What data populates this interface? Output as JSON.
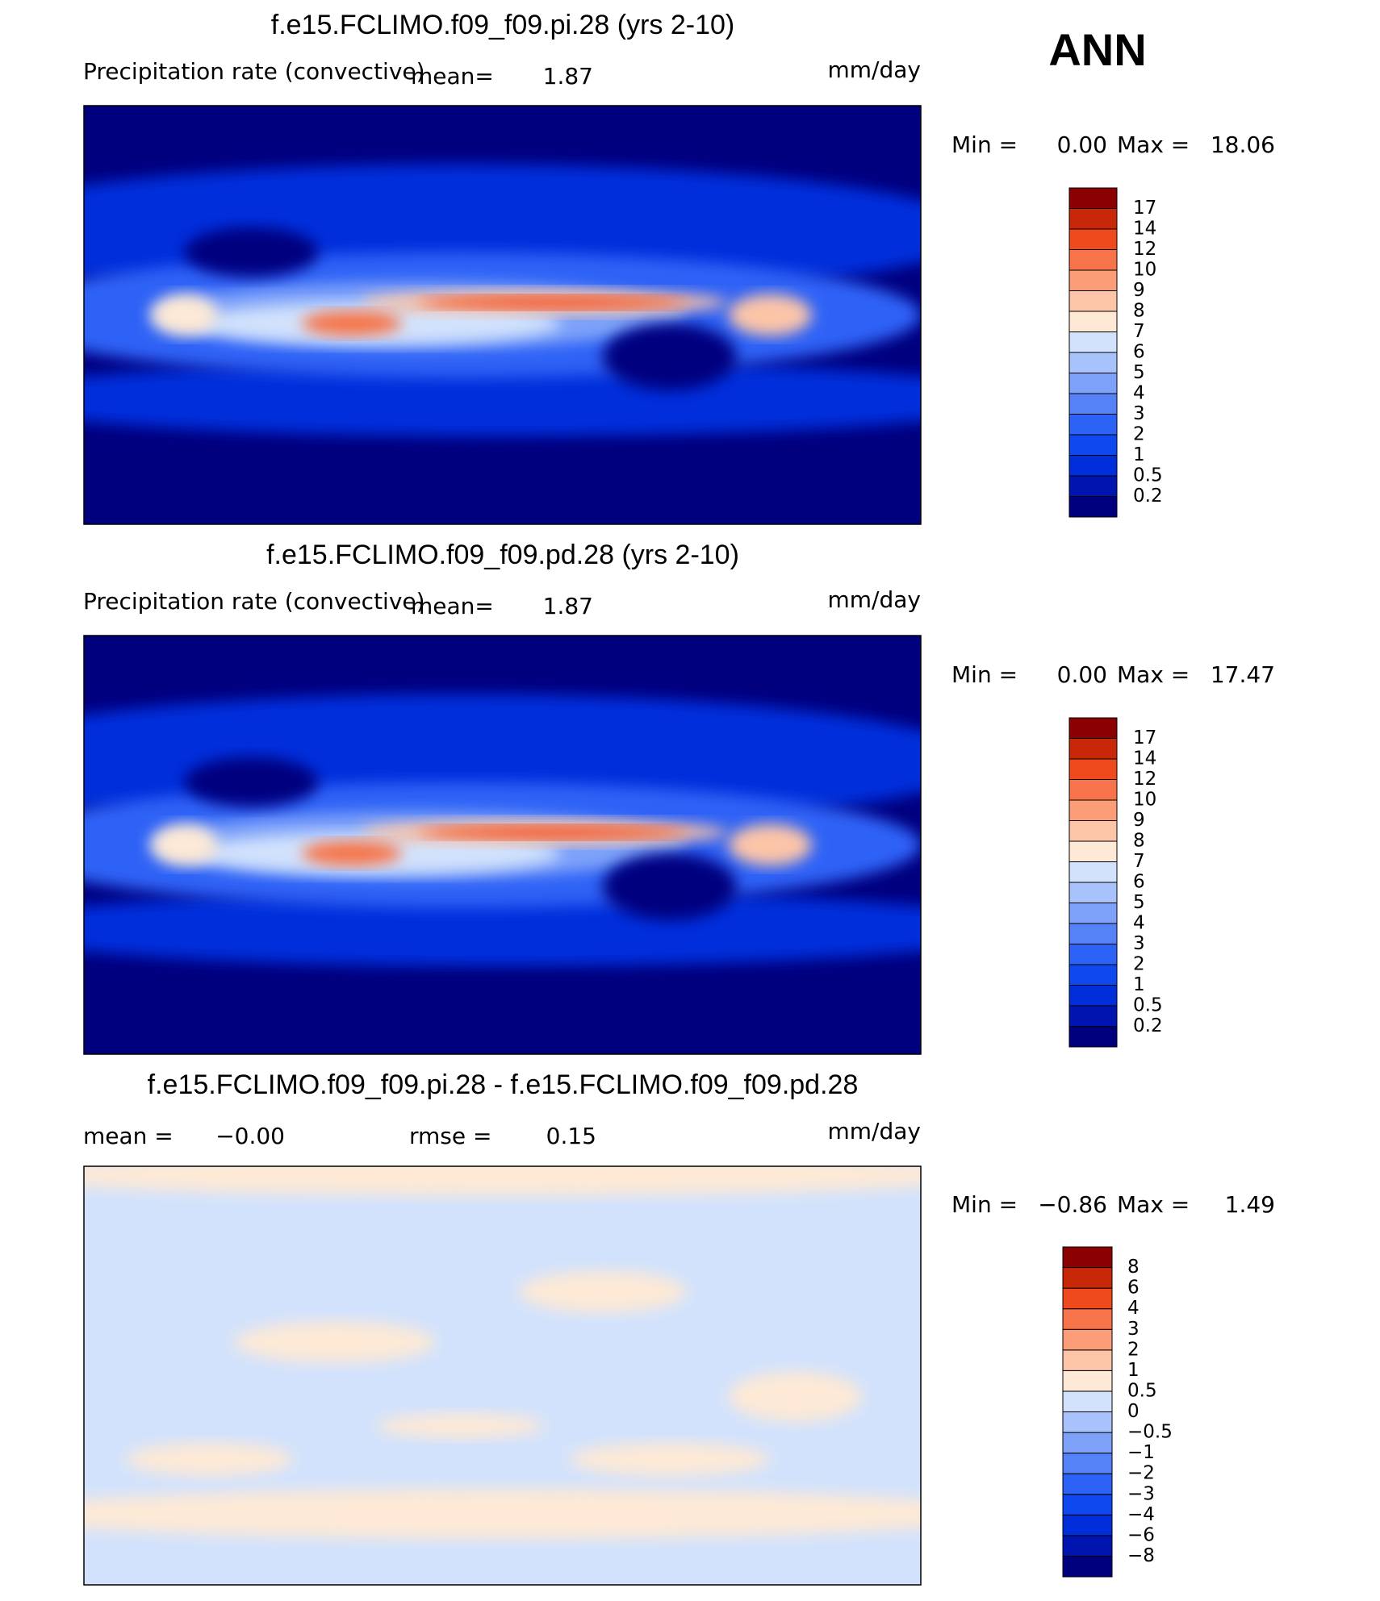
{
  "title": "ANN",
  "panels": [
    {
      "title": "f.e15.FCLIMO.f09_f09.pi.28 (yrs 2-10)",
      "variable": "Precipitation rate (convective)",
      "mean_label": "mean=",
      "mean": 1.87,
      "units": "mm/day",
      "min_label": "Min =",
      "min": {
        "value": 0,
        "label": "0.00"
      },
      "max_label": "Max =",
      "max": 18.06,
      "colorbar": {
        "levels": [
          0.2,
          0.5,
          1,
          2,
          3,
          4,
          5,
          6,
          7,
          8,
          9,
          10,
          12,
          14,
          17
        ],
        "colors": [
          "#00007f",
          "#0014b0",
          "#002edb",
          "#1048f0",
          "#2d62f6",
          "#5582f7",
          "#7ea2f9",
          "#a8c2fb",
          "#d2e2fc",
          "#fde9d6",
          "#fcc5a8",
          "#fb9e78",
          "#f7744a",
          "#ee4a1e",
          "#c82808",
          "#8b0000"
        ]
      }
    },
    {
      "title": "f.e15.FCLIMO.f09_f09.pd.28 (yrs 2-10)",
      "variable": "Precipitation rate (convective)",
      "mean_label": "mean=",
      "mean": 1.87,
      "units": "mm/day",
      "min_label": "Min =",
      "min": {
        "value": 0,
        "label": "0.00"
      },
      "max_label": "Max =",
      "max": 17.47,
      "colorbar": {
        "levels": [
          0.2,
          0.5,
          1,
          2,
          3,
          4,
          5,
          6,
          7,
          8,
          9,
          10,
          12,
          14,
          17
        ],
        "colors": [
          "#00007f",
          "#0014b0",
          "#002edb",
          "#1048f0",
          "#2d62f6",
          "#5582f7",
          "#7ea2f9",
          "#a8c2fb",
          "#d2e2fc",
          "#fde9d6",
          "#fcc5a8",
          "#fb9e78",
          "#f7744a",
          "#ee4a1e",
          "#c82808",
          "#8b0000"
        ]
      }
    },
    {
      "title": "f.e15.FCLIMO.f09_f09.pi.28 - f.e15.FCLIMO.f09_f09.pd.28",
      "mean_label": "mean =",
      "mean": {
        "value": 0,
        "label": "−0.00"
      },
      "rmse_label": "rmse =",
      "rmse": 0.15,
      "units": "mm/day",
      "min_label": "Min =",
      "min": {
        "value": -0.86,
        "label": "−0.86"
      },
      "max_label": "Max =",
      "max": 1.49,
      "colorbar": {
        "levels": [
          {
            "value": -8,
            "label": "−8"
          },
          {
            "value": -6,
            "label": "−6"
          },
          {
            "value": -4,
            "label": "−4"
          },
          {
            "value": -3,
            "label": "−3"
          },
          {
            "value": -2,
            "label": "−2"
          },
          {
            "value": -1,
            "label": "−1"
          },
          {
            "value": -0.5,
            "label": "−0.5"
          },
          0,
          0.5,
          1,
          2,
          3,
          4,
          6,
          8
        ],
        "colors": [
          "#00007f",
          "#0014b0",
          "#002edb",
          "#1048f0",
          "#2d62f6",
          "#5582f7",
          "#7ea2f9",
          "#a8c2fb",
          "#d2e2fc",
          "#fde9d6",
          "#fcc5a8",
          "#fb9e78",
          "#f7744a",
          "#ee4a1e",
          "#c82808",
          "#8b0000"
        ]
      }
    }
  ]
}
